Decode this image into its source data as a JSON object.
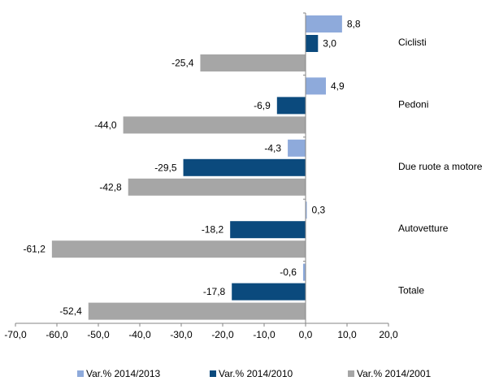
{
  "chart_data": {
    "type": "bar",
    "orientation": "horizontal",
    "categories": [
      "Ciclisti",
      "Pedoni",
      "Due ruote a motore",
      "Autovetture",
      "Totale"
    ],
    "series": [
      {
        "name": "Var.% 2014/2013",
        "color": "#8eaadb",
        "values": [
          8.8,
          4.9,
          -4.3,
          0.3,
          -0.6
        ],
        "labels": [
          "8,8",
          "4,9",
          "-4,3",
          "0,3",
          "-0,6"
        ]
      },
      {
        "name": "Var.% 2014/2010",
        "color": "#0b4a7d",
        "values": [
          3.0,
          -6.9,
          -29.5,
          -18.2,
          -17.8
        ],
        "labels": [
          "3,0",
          "-6,9",
          "-29,5",
          "-18,2",
          "-17,8"
        ]
      },
      {
        "name": "Var.% 2014/2001",
        "color": "#a6a6a6",
        "values": [
          -25.4,
          -44.0,
          -42.8,
          -61.2,
          -52.4
        ],
        "labels": [
          "-25,4",
          "-44,0",
          "-42,8",
          "-61,2",
          "-52,4"
        ]
      }
    ],
    "xlim": [
      -70,
      20
    ],
    "x_ticks": [
      -70,
      -60,
      -50,
      -40,
      -30,
      -20,
      -10,
      0,
      10,
      20
    ],
    "x_tick_labels": [
      "-70,0",
      "-60,0",
      "-50,0",
      "-40,0",
      "-30,0",
      "-20,0",
      "-10,0",
      "0,0",
      "10,0",
      "20,0"
    ],
    "grid": false,
    "legend_position": "bottom"
  }
}
